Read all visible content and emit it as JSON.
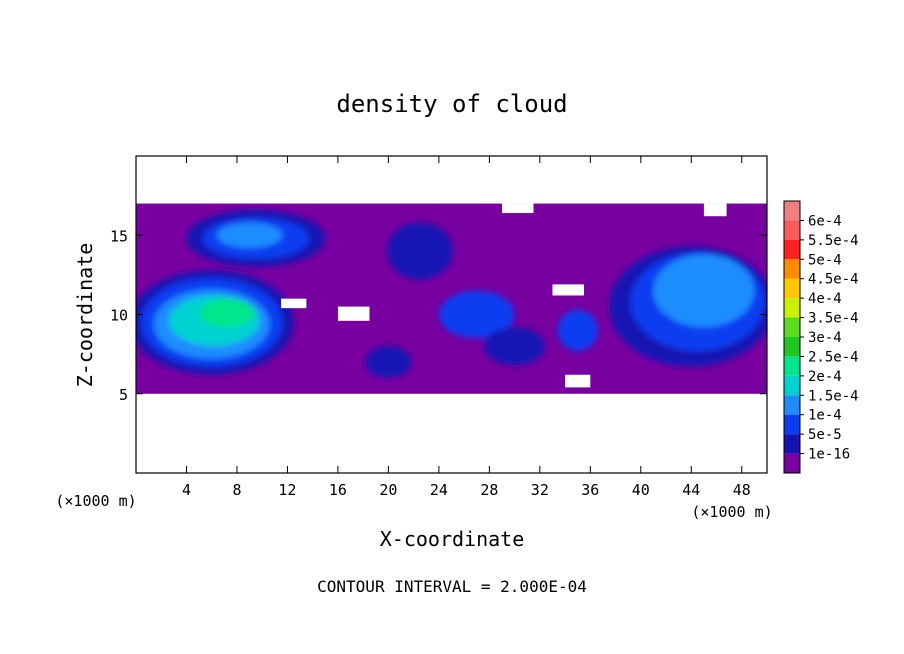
{
  "chart_data": {
    "type": "heatmap",
    "title": "density of cloud",
    "xlabel": "X-coordinate",
    "ylabel": "Z-coordinate",
    "x_unit_left": "(×1000 m)",
    "x_unit_right": "(×1000 m)",
    "xlim": [
      0,
      50
    ],
    "ylim": [
      0,
      20
    ],
    "x_ticks": [
      "4",
      "8",
      "12",
      "16",
      "20",
      "24",
      "28",
      "32",
      "36",
      "40",
      "44",
      "48"
    ],
    "x_tick_values": [
      4,
      8,
      12,
      16,
      20,
      24,
      28,
      32,
      36,
      40,
      44,
      48
    ],
    "y_ticks": [
      "5",
      "10",
      "15"
    ],
    "y_tick_values": [
      5,
      10,
      15
    ],
    "footer": "CONTOUR INTERVAL = 2.000E-04",
    "colorbar": {
      "labels": [
        "6e-4",
        "5.5e-4",
        "5e-4",
        "4.5e-4",
        "4e-4",
        "3.5e-4",
        "3e-4",
        "2.5e-4",
        "2e-4",
        "1.5e-4",
        "1e-4",
        "5e-5",
        "1e-16"
      ],
      "colors": [
        "#f08080",
        "#ff5a5a",
        "#ff2020",
        "#ff8c00",
        "#ffc800",
        "#c8f000",
        "#5adc1e",
        "#1ec81e",
        "#00e68c",
        "#00d2d2",
        "#1e8cff",
        "#0a3cf0",
        "#1414b4",
        "#7800a0"
      ]
    },
    "field_extent": {
      "x": [
        0,
        50
      ],
      "z": [
        5,
        17
      ]
    },
    "features": [
      {
        "kind": "core",
        "x": [
          0,
          12
        ],
        "z": [
          6,
          13
        ],
        "peak": "2e-4"
      },
      {
        "kind": "core",
        "x": [
          4,
          16
        ],
        "z": [
          13,
          16.5
        ],
        "peak": "1e-4"
      },
      {
        "kind": "core",
        "x": [
          37,
          50
        ],
        "z": [
          6.5,
          14.5
        ],
        "peak": "1.5e-4"
      },
      {
        "kind": "patch",
        "x": [
          19,
          26
        ],
        "z": [
          12,
          16
        ],
        "peak": "5e-5"
      },
      {
        "kind": "patch",
        "x": [
          24,
          33
        ],
        "z": [
          7,
          12
        ],
        "peak": "1e-4"
      }
    ]
  }
}
